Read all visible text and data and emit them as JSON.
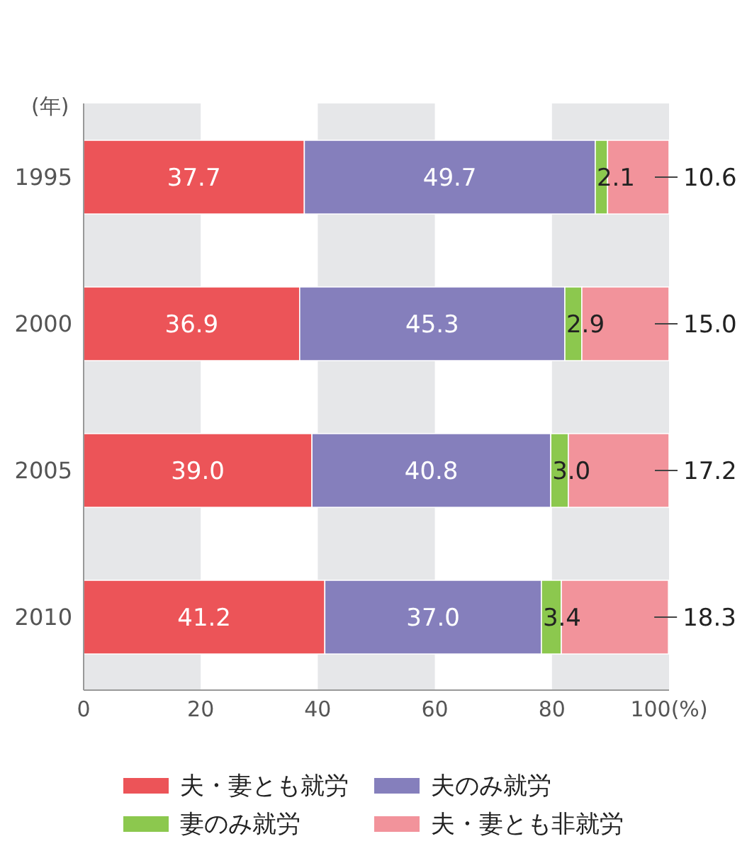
{
  "chart_data": {
    "type": "bar",
    "orientation": "horizontal",
    "stacked": true,
    "ylabel": "(年)",
    "categories": [
      "1995",
      "2000",
      "2005",
      "2010"
    ],
    "series": [
      {
        "name": "夫・妻とも就労",
        "color": "#ec5458",
        "values": [
          37.7,
          36.9,
          39.0,
          41.2
        ],
        "value_labels": [
          "37.7",
          "36.9",
          "39.0",
          "41.2"
        ]
      },
      {
        "name": "夫のみ就労",
        "color": "#857fbc",
        "values": [
          49.7,
          45.3,
          40.8,
          37.0
        ],
        "value_labels": [
          "49.7",
          "45.3",
          "40.8",
          "37.0"
        ]
      },
      {
        "name": "妻のみ就労",
        "color": "#8cc84e",
        "values": [
          2.1,
          2.9,
          3.0,
          3.4
        ],
        "value_labels": [
          "2.1",
          "2.9",
          "3.0",
          "3.4"
        ]
      },
      {
        "name": "夫・妻とも非就労",
        "color": "#f2939b",
        "values": [
          10.6,
          15.0,
          17.2,
          18.3
        ],
        "value_labels": [
          "10.6",
          "15.0",
          "17.2",
          "18.3"
        ]
      }
    ],
    "xlim": [
      0,
      100
    ],
    "xticks": [
      0,
      20,
      40,
      60,
      80,
      {
        "value": 100,
        "label": "100(%)"
      }
    ],
    "bands": [
      {
        "axis": "x",
        "from": 0,
        "to": 20,
        "color": "#e6e7e9"
      },
      {
        "axis": "x",
        "from": 40,
        "to": 60,
        "color": "#e6e7e9"
      },
      {
        "axis": "x",
        "from": 80,
        "to": 100,
        "color": "#e6e7e9"
      }
    ],
    "legend": "bottom"
  }
}
